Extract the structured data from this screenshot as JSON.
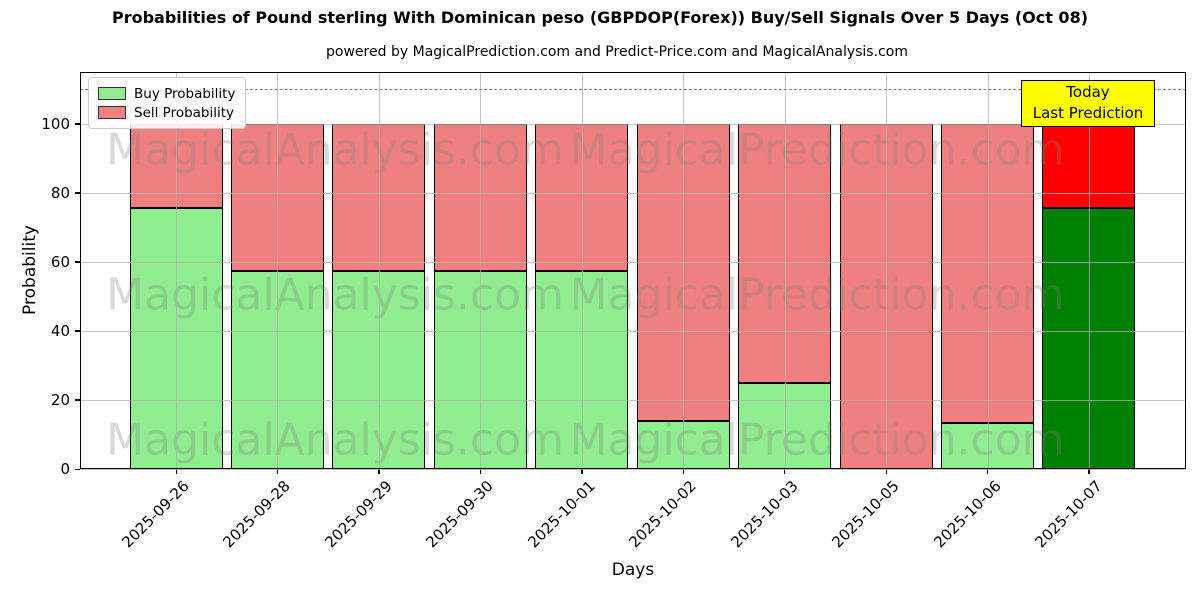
{
  "title": "Probabilities of Pound sterling With Dominican peso (GBPDOP(Forex)) Buy/Sell Signals Over 5 Days (Oct 08)",
  "subtitle": "powered by MagicalPrediction.com and Predict-Price.com and MagicalAnalysis.com",
  "legend": {
    "buy_label": "Buy Probability",
    "sell_label": "Sell Probability"
  },
  "annotation": {
    "line1": "Today",
    "line2": "Last Prediction"
  },
  "watermarks": {
    "left_text": "MagicalAnalysis.com",
    "right_text": "MagicalPrediction.com"
  },
  "colors": {
    "buy": "#90ee90",
    "sell": "#f08080",
    "buy_today": "#008000",
    "sell_today": "#ff0000",
    "bar_edge": "#000000",
    "grid": "#b0b0b0",
    "dashed_line": "#7f7f7f",
    "annotation_bg": "#ffff00"
  },
  "chart_data": {
    "type": "bar",
    "stacked": true,
    "title": "Probabilities of Pound sterling With Dominican peso (GBPDOP(Forex)) Buy/Sell Signals Over 5 Days (Oct 08)",
    "xlabel": "Days",
    "ylabel": "Probability",
    "categories": [
      "2025-09-26",
      "2025-09-28",
      "2025-09-29",
      "2025-09-30",
      "2025-10-01",
      "2025-10-02",
      "2025-10-03",
      "2025-10-05",
      "2025-10-06",
      "2025-10-07"
    ],
    "series": [
      {
        "name": "Buy Probability",
        "values": [
          75.5,
          57.3,
          57.3,
          57.3,
          57.3,
          14.0,
          25.0,
          0.0,
          13.2,
          75.5
        ]
      },
      {
        "name": "Sell Probability",
        "values": [
          24.5,
          42.7,
          42.7,
          42.7,
          42.7,
          86.0,
          75.0,
          100.0,
          86.8,
          24.5
        ]
      }
    ],
    "ylim": [
      0,
      115
    ],
    "yticks": [
      0,
      20,
      40,
      60,
      80,
      100
    ],
    "dashed_line_y": 110,
    "grid": true,
    "legend_position": "upper left",
    "today_index": 9,
    "x_tick_rotation": 45
  }
}
